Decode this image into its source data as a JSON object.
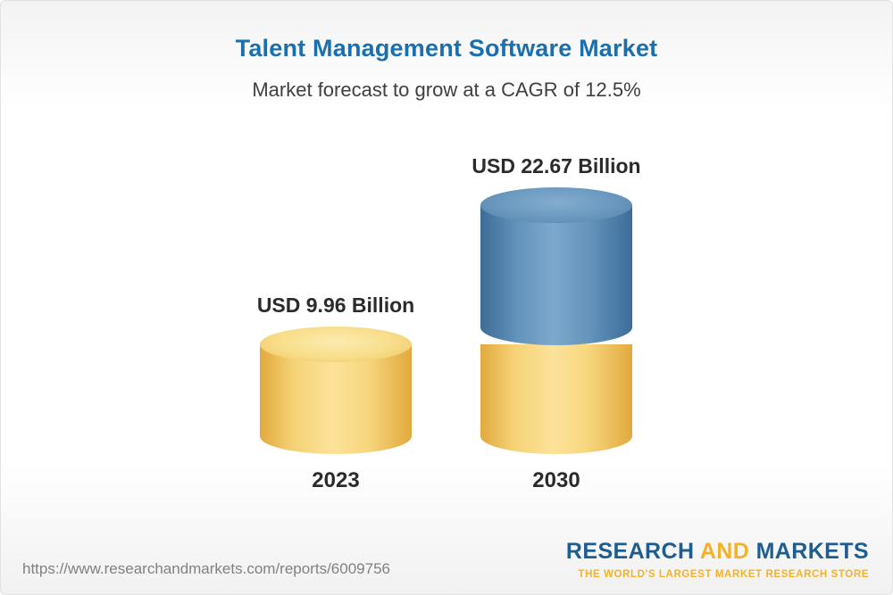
{
  "page": {
    "title": "Talent Management Software Market",
    "subtitle": "Market forecast to grow at a CAGR of 12.5%"
  },
  "chart_data": {
    "type": "bar",
    "variant": "3d-cylinder",
    "categories": [
      "2023",
      "2030"
    ],
    "values": [
      9.96,
      22.67
    ],
    "unit": "USD Billion",
    "bar_labels": [
      "USD 9.96 Billion",
      "USD 22.67 Billion"
    ],
    "cagr_percent": 12.5,
    "legend_position": "none",
    "grid": false,
    "colors": {
      "bar_2023": "#f5d276",
      "bar_2030_growth": "#6493bb",
      "bar_2030_base": "#f5d276",
      "title": "#1c6fad",
      "label_text": "#2b2b2b"
    }
  },
  "footer": {
    "url": "https://www.researchandmarkets.com/reports/6009756",
    "logo": {
      "research": "RESEARCH",
      "and": "AND",
      "markets": "MARKETS",
      "tagline": "THE WORLD'S LARGEST MARKET RESEARCH STORE"
    }
  }
}
